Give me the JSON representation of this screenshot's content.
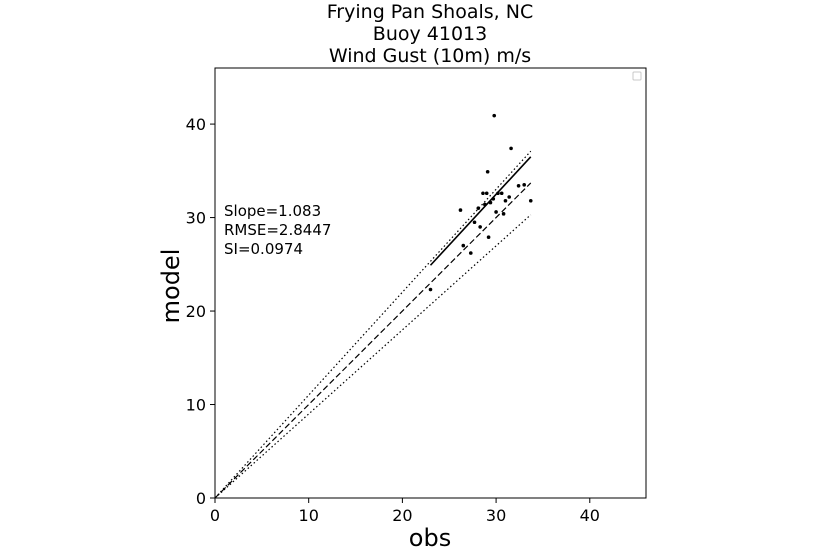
{
  "chart_data": {
    "type": "scatter",
    "title_lines": [
      "Frying Pan Shoals, NC",
      "Buoy 41013",
      "Wind Gust (10m) m/s"
    ],
    "xlabel": "obs",
    "ylabel": "model",
    "xlim": [
      0,
      46
    ],
    "ylim": [
      0,
      46
    ],
    "xticks": [
      0,
      10,
      20,
      30,
      40
    ],
    "yticks": [
      0,
      10,
      20,
      30,
      40
    ],
    "stats": [
      "Slope=1.083",
      "RMSE=2.8447",
      "SI=0.0974"
    ],
    "legend": "top-right (empty)",
    "points": [
      [
        23.0,
        22.3
      ],
      [
        26.2,
        30.8
      ],
      [
        26.5,
        27.0
      ],
      [
        27.3,
        26.2
      ],
      [
        27.7,
        29.5
      ],
      [
        28.1,
        31.0
      ],
      [
        28.3,
        29.0
      ],
      [
        28.6,
        32.6
      ],
      [
        28.8,
        31.4
      ],
      [
        29.0,
        32.6
      ],
      [
        29.1,
        34.9
      ],
      [
        29.2,
        27.9
      ],
      [
        29.4,
        31.6
      ],
      [
        29.7,
        32.0
      ],
      [
        29.8,
        40.9
      ],
      [
        30.0,
        30.6
      ],
      [
        30.2,
        32.6
      ],
      [
        30.6,
        32.6
      ],
      [
        30.8,
        30.4
      ],
      [
        31.0,
        31.8
      ],
      [
        31.4,
        32.2
      ],
      [
        31.6,
        37.4
      ],
      [
        32.4,
        33.4
      ],
      [
        33.0,
        33.5
      ],
      [
        33.7,
        31.8
      ]
    ],
    "lines": [
      {
        "style": "solid",
        "x": [
          23.0,
          33.7
        ],
        "y": [
          24.9,
          36.5
        ]
      },
      {
        "style": "dashed",
        "x": [
          0,
          33.7
        ],
        "y": [
          0,
          33.7
        ]
      },
      {
        "style": "dotted",
        "x": [
          0,
          33.7
        ],
        "y": [
          0,
          37.1
        ]
      },
      {
        "style": "dotted",
        "x": [
          0,
          33.7
        ],
        "y": [
          0,
          30.3
        ]
      }
    ]
  }
}
